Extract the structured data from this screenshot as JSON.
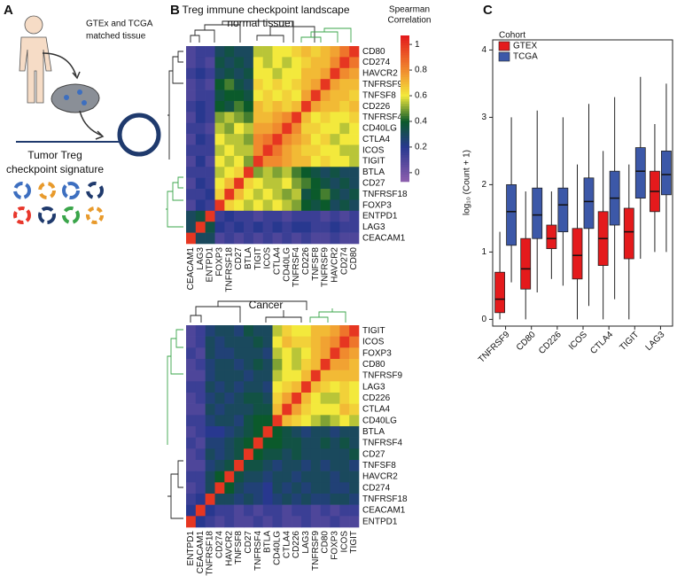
{
  "panel_a": {
    "label": "A",
    "top_text": [
      "GTEx and TCGA",
      "matched tissue"
    ],
    "bottom_text": [
      "Tumor Treg",
      "checkpoint signature"
    ]
  },
  "chart_data": [
    {
      "type": "heatmap",
      "panel": "B",
      "title": "Treg immune checkpoint landscape",
      "subtitle": "normal tissue",
      "colorbar_title": [
        "Spearman",
        "Correlation"
      ],
      "rows": [
        "CD80",
        "CD274",
        "HAVCR2",
        "TNFRSF9",
        "TNFSF8",
        "CD226",
        "TNFRSF4",
        "CD40LG",
        "CTLA4",
        "ICOS",
        "TIGIT",
        "BTLA",
        "CD27",
        "TNFRSF18",
        "FOXP3",
        "ENTPD1",
        "LAG3",
        "CEACAM1"
      ],
      "columns": [
        "CEACAM1",
        "LAG3",
        "ENTPD1",
        "FOXP3",
        "TNFRSF18",
        "CD27",
        "BTLA",
        "TIGIT",
        "ICOS",
        "CTLA4",
        "CD40LG",
        "TNFRSF4",
        "CD226",
        "TNFSF8",
        "TNFRSF9",
        "HAVCR2",
        "CD274",
        "CD80"
      ],
      "values": [
        [
          0.1,
          0.15,
          0.15,
          0.3,
          0.35,
          0.3,
          0.3,
          0.55,
          0.55,
          0.6,
          0.6,
          0.65,
          0.7,
          0.65,
          0.7,
          0.75,
          0.85,
          1
        ],
        [
          0.1,
          0.15,
          0.1,
          0.35,
          0.3,
          0.35,
          0.3,
          0.6,
          0.55,
          0.6,
          0.55,
          0.6,
          0.65,
          0.7,
          0.7,
          0.8,
          1,
          0.85
        ],
        [
          0.15,
          0.2,
          0.15,
          0.3,
          0.35,
          0.3,
          0.35,
          0.6,
          0.6,
          0.55,
          0.6,
          0.6,
          0.7,
          0.7,
          0.75,
          1,
          0.8,
          0.75
        ],
        [
          0.1,
          0.15,
          0.1,
          0.4,
          0.45,
          0.35,
          0.3,
          0.65,
          0.6,
          0.65,
          0.6,
          0.65,
          0.7,
          0.75,
          1,
          0.75,
          0.7,
          0.7
        ],
        [
          0.1,
          0.15,
          0.15,
          0.35,
          0.4,
          0.4,
          0.35,
          0.6,
          0.65,
          0.6,
          0.65,
          0.6,
          0.75,
          1,
          0.75,
          0.7,
          0.7,
          0.65
        ],
        [
          0.15,
          0.2,
          0.15,
          0.4,
          0.35,
          0.45,
          0.4,
          0.7,
          0.65,
          0.7,
          0.65,
          0.7,
          1,
          0.75,
          0.7,
          0.7,
          0.65,
          0.7
        ],
        [
          0.1,
          0.2,
          0.15,
          0.5,
          0.55,
          0.5,
          0.45,
          0.7,
          0.7,
          0.75,
          0.8,
          1,
          0.7,
          0.6,
          0.65,
          0.6,
          0.6,
          0.65
        ],
        [
          0.15,
          0.15,
          0.1,
          0.55,
          0.5,
          0.6,
          0.55,
          0.75,
          0.75,
          0.8,
          1,
          0.8,
          0.65,
          0.65,
          0.6,
          0.6,
          0.55,
          0.6
        ],
        [
          0.1,
          0.2,
          0.15,
          0.6,
          0.55,
          0.55,
          0.5,
          0.8,
          0.85,
          1,
          0.8,
          0.75,
          0.7,
          0.6,
          0.65,
          0.55,
          0.6,
          0.6
        ],
        [
          0.15,
          0.15,
          0.15,
          0.55,
          0.6,
          0.55,
          0.55,
          0.8,
          1,
          0.85,
          0.75,
          0.7,
          0.65,
          0.65,
          0.6,
          0.6,
          0.55,
          0.55
        ],
        [
          0.1,
          0.2,
          0.1,
          0.6,
          0.55,
          0.6,
          0.5,
          1,
          0.8,
          0.8,
          0.75,
          0.7,
          0.7,
          0.6,
          0.65,
          0.6,
          0.6,
          0.55
        ],
        [
          0.15,
          0.15,
          0.15,
          0.55,
          0.6,
          0.65,
          1,
          0.5,
          0.55,
          0.5,
          0.55,
          0.45,
          0.4,
          0.35,
          0.3,
          0.35,
          0.3,
          0.3
        ],
        [
          0.1,
          0.2,
          0.15,
          0.6,
          0.7,
          1,
          0.65,
          0.6,
          0.55,
          0.55,
          0.6,
          0.5,
          0.45,
          0.4,
          0.35,
          0.3,
          0.35,
          0.3
        ],
        [
          0.15,
          0.15,
          0.2,
          0.65,
          1,
          0.7,
          0.6,
          0.55,
          0.6,
          0.55,
          0.5,
          0.55,
          0.35,
          0.4,
          0.45,
          0.35,
          0.3,
          0.35
        ],
        [
          0.1,
          0.2,
          0.15,
          1,
          0.65,
          0.6,
          0.55,
          0.6,
          0.55,
          0.6,
          0.55,
          0.5,
          0.4,
          0.35,
          0.4,
          0.3,
          0.35,
          0.3
        ],
        [
          0.3,
          0.35,
          1,
          0.15,
          0.2,
          0.15,
          0.15,
          0.1,
          0.15,
          0.15,
          0.1,
          0.15,
          0.15,
          0.15,
          0.1,
          0.15,
          0.1,
          0.15
        ],
        [
          0.3,
          1,
          0.35,
          0.2,
          0.15,
          0.2,
          0.15,
          0.2,
          0.15,
          0.2,
          0.15,
          0.2,
          0.2,
          0.15,
          0.15,
          0.2,
          0.15,
          0.15
        ],
        [
          1,
          0.3,
          0.3,
          0.1,
          0.15,
          0.1,
          0.15,
          0.1,
          0.15,
          0.1,
          0.15,
          0.1,
          0.15,
          0.1,
          0.1,
          0.15,
          0.1,
          0.1
        ]
      ],
      "zlim": [
        -0.07,
        1.07
      ],
      "zticks": [
        1,
        0.8,
        0.6,
        0.4,
        0.2,
        0
      ],
      "colorscale": [
        [
          -0.07,
          "#8e5fae"
        ],
        [
          0.2,
          "#28388f"
        ],
        [
          0.4,
          "#0b5a2b"
        ],
        [
          0.6,
          "#f3e93c"
        ],
        [
          0.8,
          "#f08a2e"
        ],
        [
          1.07,
          "#e3191c"
        ]
      ]
    },
    {
      "type": "heatmap",
      "title": "Cancer",
      "rows": [
        "TIGIT",
        "ICOS",
        "FOXP3",
        "CD80",
        "TNFRSF9",
        "LAG3",
        "CD226",
        "CTLA4",
        "CD40LG",
        "BTLA",
        "TNFRSF4",
        "CD27",
        "TNFSF8",
        "HAVCR2",
        "CD274",
        "TNFRSF18",
        "CEACAM1",
        "ENTPD1"
      ],
      "columns": [
        "ENTPD1",
        "CEACAM1",
        "TNFRSF18",
        "CD274",
        "HAVCR2",
        "TNFSF8",
        "CD27",
        "TNFRSF4",
        "BTLA",
        "CD40LG",
        "CTLA4",
        "CD226",
        "LAG3",
        "TNFRSF9",
        "CD80",
        "FOXP3",
        "ICOS",
        "TIGIT"
      ],
      "values": [
        [
          0.1,
          0.15,
          0.25,
          0.3,
          0.3,
          0.25,
          0.35,
          0.3,
          0.3,
          0.55,
          0.65,
          0.6,
          0.6,
          0.7,
          0.7,
          0.75,
          0.85,
          1
        ],
        [
          0.1,
          0.15,
          0.3,
          0.25,
          0.3,
          0.3,
          0.3,
          0.35,
          0.3,
          0.6,
          0.7,
          0.65,
          0.65,
          0.7,
          0.75,
          0.8,
          1,
          0.85
        ],
        [
          0.15,
          0.1,
          0.3,
          0.25,
          0.25,
          0.3,
          0.3,
          0.3,
          0.25,
          0.55,
          0.6,
          0.55,
          0.6,
          0.7,
          0.75,
          1,
          0.8,
          0.75
        ],
        [
          0.1,
          0.15,
          0.25,
          0.3,
          0.3,
          0.25,
          0.3,
          0.35,
          0.3,
          0.5,
          0.6,
          0.55,
          0.65,
          0.7,
          1,
          0.75,
          0.75,
          0.7
        ],
        [
          0.1,
          0.1,
          0.25,
          0.3,
          0.3,
          0.3,
          0.25,
          0.3,
          0.3,
          0.55,
          0.6,
          0.6,
          0.7,
          1,
          0.7,
          0.7,
          0.7,
          0.7
        ],
        [
          0.15,
          0.15,
          0.3,
          0.25,
          0.3,
          0.25,
          0.3,
          0.3,
          0.25,
          0.6,
          0.65,
          0.7,
          1,
          0.7,
          0.65,
          0.6,
          0.65,
          0.6
        ],
        [
          0.1,
          0.15,
          0.25,
          0.3,
          0.25,
          0.3,
          0.35,
          0.35,
          0.3,
          0.65,
          0.75,
          1,
          0.7,
          0.6,
          0.55,
          0.55,
          0.65,
          0.6
        ],
        [
          0.1,
          0.1,
          0.3,
          0.25,
          0.3,
          0.3,
          0.3,
          0.35,
          0.35,
          0.7,
          1,
          0.75,
          0.65,
          0.6,
          0.6,
          0.6,
          0.7,
          0.65
        ],
        [
          0.15,
          0.15,
          0.25,
          0.3,
          0.3,
          0.25,
          0.35,
          0.4,
          0.4,
          1,
          0.7,
          0.65,
          0.6,
          0.55,
          0.5,
          0.55,
          0.6,
          0.55
        ],
        [
          0.1,
          0.15,
          0.2,
          0.2,
          0.25,
          0.3,
          0.35,
          0.4,
          1,
          0.4,
          0.35,
          0.3,
          0.25,
          0.3,
          0.3,
          0.25,
          0.3,
          0.3
        ],
        [
          0.15,
          0.1,
          0.25,
          0.25,
          0.3,
          0.35,
          0.4,
          1,
          0.4,
          0.4,
          0.35,
          0.35,
          0.3,
          0.3,
          0.35,
          0.3,
          0.35,
          0.3
        ],
        [
          0.1,
          0.15,
          0.3,
          0.25,
          0.3,
          0.35,
          1,
          0.4,
          0.35,
          0.35,
          0.3,
          0.35,
          0.3,
          0.3,
          0.3,
          0.3,
          0.3,
          0.35
        ],
        [
          0.1,
          0.1,
          0.25,
          0.3,
          0.35,
          1,
          0.35,
          0.35,
          0.3,
          0.25,
          0.3,
          0.3,
          0.25,
          0.3,
          0.25,
          0.3,
          0.3,
          0.25
        ],
        [
          0.15,
          0.15,
          0.3,
          0.4,
          1,
          0.35,
          0.3,
          0.3,
          0.25,
          0.3,
          0.3,
          0.25,
          0.3,
          0.3,
          0.3,
          0.25,
          0.3,
          0.3
        ],
        [
          0.1,
          0.15,
          0.3,
          1,
          0.4,
          0.3,
          0.25,
          0.25,
          0.2,
          0.3,
          0.25,
          0.3,
          0.25,
          0.3,
          0.3,
          0.25,
          0.25,
          0.3
        ],
        [
          0.15,
          0.2,
          1,
          0.3,
          0.3,
          0.25,
          0.3,
          0.25,
          0.2,
          0.25,
          0.3,
          0.25,
          0.3,
          0.25,
          0.25,
          0.3,
          0.3,
          0.25
        ],
        [
          0.2,
          1,
          0.2,
          0.15,
          0.15,
          0.1,
          0.15,
          0.1,
          0.15,
          0.15,
          0.1,
          0.15,
          0.15,
          0.1,
          0.15,
          0.1,
          0.15,
          0.15
        ],
        [
          1,
          0.2,
          0.15,
          0.1,
          0.15,
          0.1,
          0.1,
          0.15,
          0.1,
          0.15,
          0.1,
          0.1,
          0.15,
          0.1,
          0.1,
          0.15,
          0.1,
          0.1
        ]
      ]
    },
    {
      "type": "box",
      "panel": "C",
      "ylabel": "log₁₀ (Count + 1)",
      "legend_title": "Cohort",
      "categories": [
        "TNFRSF9",
        "CD80",
        "CD226",
        "ICOS",
        "CTLA4",
        "TIGIT",
        "LAG3"
      ],
      "ylim": [
        -0.1,
        4.15
      ],
      "yticks": [
        0,
        1,
        2,
        3,
        4
      ],
      "series": [
        {
          "name": "GTEX",
          "color": "#e41a1c",
          "whislo": [
            0,
            0,
            0.6,
            0,
            0,
            0,
            1.0
          ],
          "q1": [
            0.1,
            0.45,
            1.05,
            0.6,
            0.8,
            0.9,
            1.6
          ],
          "med": [
            0.3,
            0.75,
            1.2,
            0.95,
            1.2,
            1.3,
            1.9
          ],
          "q3": [
            0.7,
            1.2,
            1.4,
            1.35,
            1.6,
            1.65,
            2.2
          ],
          "whishi": [
            1.3,
            1.9,
            1.9,
            2.3,
            2.5,
            2.3,
            2.9
          ]
        },
        {
          "name": "TCGA",
          "color": "#3c58a8",
          "whislo": [
            0.55,
            0.4,
            0.5,
            0.2,
            0.3,
            0.9,
            1.0
          ],
          "q1": [
            1.1,
            1.2,
            1.3,
            1.35,
            1.4,
            1.8,
            1.85
          ],
          "med": [
            1.6,
            1.55,
            1.7,
            1.75,
            1.8,
            2.2,
            2.15
          ],
          "q3": [
            2.0,
            1.95,
            1.95,
            2.1,
            2.2,
            2.55,
            2.5
          ],
          "whishi": [
            3.0,
            3.1,
            3.0,
            3.2,
            3.3,
            3.6,
            3.5
          ]
        }
      ]
    }
  ]
}
